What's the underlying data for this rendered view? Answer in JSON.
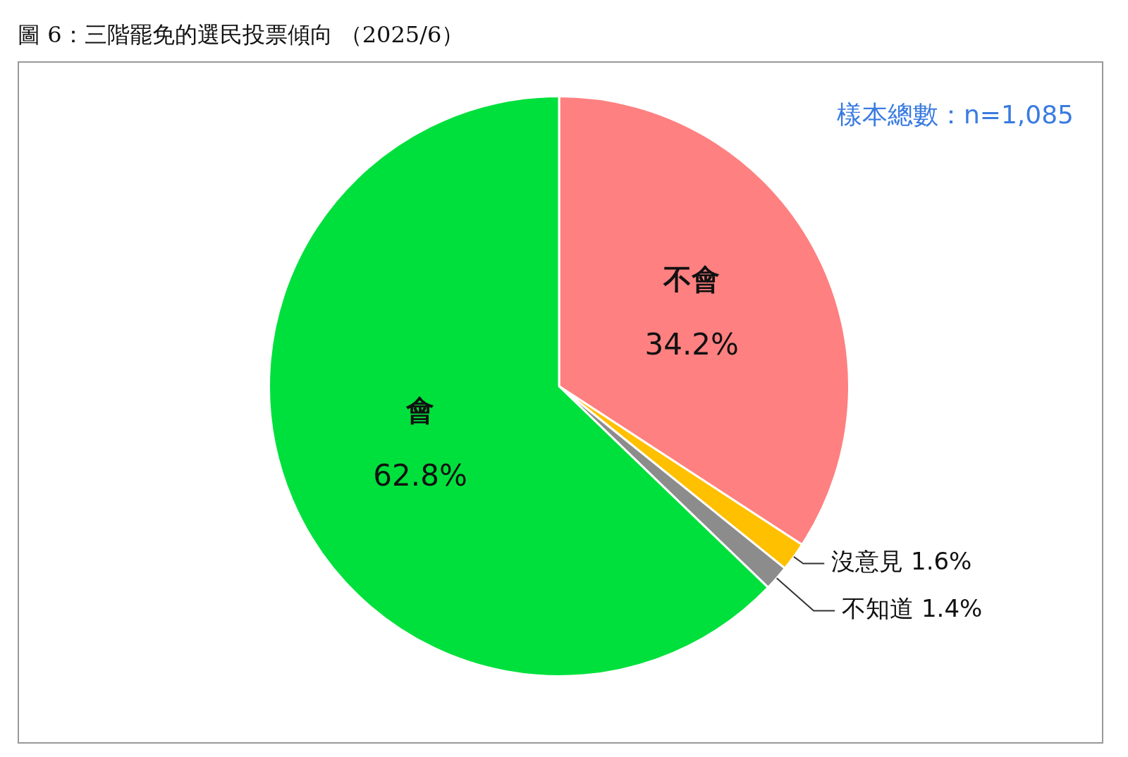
{
  "chart_data": {
    "type": "pie",
    "title": "圖 6：三階罷免的選民投票傾向 （2025/6）",
    "categories": [
      "不會",
      "沒意見",
      "不知道",
      "會"
    ],
    "values": [
      34.2,
      1.6,
      1.4,
      62.8
    ],
    "colors": [
      "#ff8080",
      "#ffc000",
      "#8c8c8c",
      "#00e03c"
    ],
    "value_labels": [
      "34.2%",
      "1.6%",
      "1.4%",
      "62.8%"
    ],
    "annotations": [
      "樣本總數：n=1,085"
    ],
    "legend": false
  }
}
